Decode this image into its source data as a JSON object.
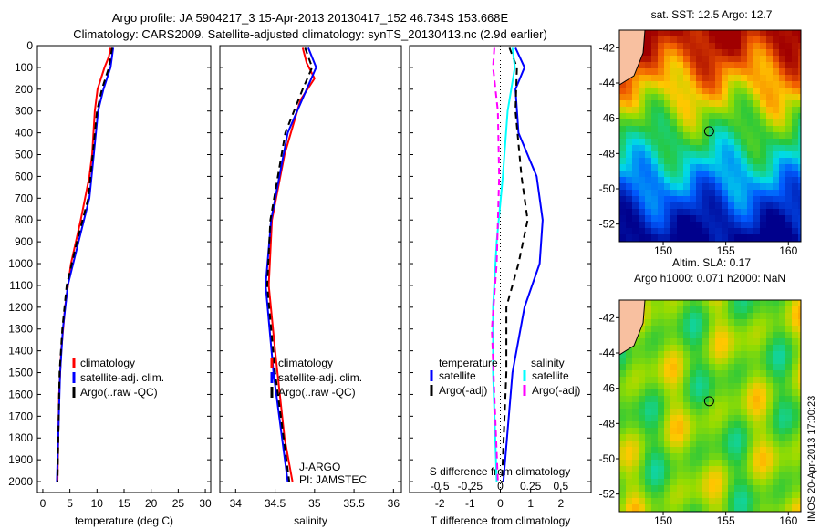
{
  "title_line1": "Argo profile: JA 5904217_3 15-Apr-2013 20130417_152 46.734S 153.668E",
  "title_line2": "Climatology: CARS2009. Satellite-adjusted climatology: synTS_20130413.nc (2.9d earlier)",
  "side_label": "IMOS 20-Apr-2013 17:00:23",
  "colors": {
    "climatology": "#ff0000",
    "satellite": "#0000ff",
    "argo": "#000000",
    "sal_sat": "#00ffff",
    "sal_argo": "#ff00ff"
  },
  "chart_data": [
    {
      "type": "line",
      "name": "temperature",
      "xlabel": "temperature (deg C)",
      "xlim": [
        -1,
        31
      ],
      "ylim": [
        2050,
        0
      ],
      "xticks": [
        "0",
        "5",
        "10",
        "15",
        "20",
        "25",
        "30"
      ],
      "xtick_values": [
        0,
        5,
        10,
        15,
        20,
        25,
        30
      ],
      "yticks": [
        "0",
        "100",
        "200",
        "300",
        "400",
        "500",
        "600",
        "700",
        "800",
        "900",
        "1000",
        "1100",
        "1200",
        "1300",
        "1400",
        "1500",
        "1600",
        "1700",
        "1800",
        "1900",
        "2000"
      ],
      "legend": [
        "climatology",
        "satellite-adj. clim.",
        "Argo(..raw -QC)"
      ],
      "series": [
        {
          "name": "climatology",
          "style": "solid",
          "color": "#ff0000",
          "points": [
            [
              10,
              12.5
            ],
            [
              50,
              12.2
            ],
            [
              100,
              11.4
            ],
            [
              200,
              10.1
            ],
            [
              300,
              9.6
            ],
            [
              500,
              9.1
            ],
            [
              600,
              8.6
            ],
            [
              800,
              7.0
            ],
            [
              1000,
              5.2
            ],
            [
              1200,
              4.1
            ],
            [
              1400,
              3.4
            ],
            [
              1600,
              3.0
            ],
            [
              2000,
              2.7
            ]
          ]
        },
        {
          "name": "satellite-adj. clim.",
          "style": "solid",
          "color": "#0000ff",
          "points": [
            [
              10,
              13.0
            ],
            [
              100,
              12.5
            ],
            [
              200,
              11.2
            ],
            [
              300,
              10.2
            ],
            [
              500,
              9.4
            ],
            [
              700,
              8.6
            ],
            [
              900,
              6.6
            ],
            [
              1100,
              4.6
            ],
            [
              1300,
              3.7
            ],
            [
              1500,
              3.2
            ],
            [
              2000,
              2.6
            ]
          ]
        },
        {
          "name": "Argo(..raw -QC)",
          "style": "dash",
          "color": "#000000",
          "points": [
            [
              10,
              12.8
            ],
            [
              100,
              12.2
            ],
            [
              200,
              10.9
            ],
            [
              300,
              10.0
            ],
            [
              500,
              9.2
            ],
            [
              700,
              8.4
            ],
            [
              900,
              6.3
            ],
            [
              1100,
              4.4
            ],
            [
              1300,
              3.6
            ],
            [
              1500,
              3.1
            ],
            [
              2000,
              2.7
            ]
          ]
        }
      ]
    },
    {
      "type": "line",
      "name": "salinity",
      "xlabel": "salinity",
      "xlim": [
        33.8,
        36.1
      ],
      "ylim": [
        2050,
        0
      ],
      "xticks": [
        "34",
        "34.5",
        "35",
        "35.5",
        "36"
      ],
      "xtick_values": [
        34,
        34.5,
        35,
        35.5,
        36
      ],
      "legend": [
        "climatology",
        "satellite-adj. clim.",
        "Argo(..raw -QC)"
      ],
      "annotation": [
        "J-ARGO",
        "PI: JAMSTEC"
      ],
      "series": [
        {
          "name": "climatology",
          "style": "solid",
          "color": "#ff0000",
          "points": [
            [
              10,
              34.85
            ],
            [
              80,
              34.9
            ],
            [
              150,
              35.0
            ],
            [
              250,
              34.82
            ],
            [
              500,
              34.62
            ],
            [
              800,
              34.46
            ],
            [
              1100,
              34.42
            ],
            [
              1400,
              34.5
            ],
            [
              1800,
              34.62
            ],
            [
              2000,
              34.72
            ]
          ]
        },
        {
          "name": "satellite-adj. clim.",
          "style": "solid",
          "color": "#0000ff",
          "points": [
            [
              10,
              34.92
            ],
            [
              100,
              35.02
            ],
            [
              200,
              34.9
            ],
            [
              400,
              34.66
            ],
            [
              800,
              34.45
            ],
            [
              1100,
              34.38
            ],
            [
              1500,
              34.48
            ],
            [
              2000,
              34.66
            ]
          ]
        },
        {
          "name": "Argo(..raw -QC)",
          "style": "dash",
          "color": "#000000",
          "points": [
            [
              10,
              34.88
            ],
            [
              100,
              34.97
            ],
            [
              200,
              34.85
            ],
            [
              400,
              34.63
            ],
            [
              800,
              34.44
            ],
            [
              1100,
              34.4
            ],
            [
              1500,
              34.5
            ],
            [
              2000,
              34.68
            ]
          ]
        }
      ]
    },
    {
      "type": "line",
      "name": "difference",
      "xlabel": "T difference from climatology",
      "x2label": "S difference from climatology",
      "xlim": [
        -3,
        3
      ],
      "ylim": [
        2050,
        0
      ],
      "xticks": [
        "-2",
        "-1",
        "0",
        "1",
        "2"
      ],
      "xtick_values": [
        -2,
        -1,
        0,
        1,
        2
      ],
      "x2ticks": [
        "-0.5",
        "-0.25",
        "0",
        "0.25",
        "0.5"
      ],
      "x2tick_values": [
        -0.5,
        -0.25,
        0,
        0.25,
        0.5
      ],
      "legend_titles": [
        "temperature",
        "salinity"
      ],
      "legend": [
        "satellite",
        "Argo(-adj)",
        "satellite",
        "Argo(-adj)"
      ],
      "series": [
        {
          "name": "T satellite",
          "style": "solid",
          "color": "#0000ff",
          "points": [
            [
              10,
              0.5
            ],
            [
              100,
              0.8
            ],
            [
              200,
              0.5
            ],
            [
              400,
              0.6
            ],
            [
              600,
              1.2
            ],
            [
              800,
              1.4
            ],
            [
              1000,
              1.3
            ],
            [
              1200,
              0.8
            ],
            [
              1500,
              0.4
            ],
            [
              2000,
              0.1
            ]
          ]
        },
        {
          "name": "T Argo(-adj)",
          "style": "dash",
          "color": "#000000",
          "points": [
            [
              10,
              0.3
            ],
            [
              100,
              0.55
            ],
            [
              300,
              0.5
            ],
            [
              600,
              0.7
            ],
            [
              800,
              0.9
            ],
            [
              1000,
              0.6
            ],
            [
              1200,
              0.2
            ],
            [
              1500,
              0.2
            ],
            [
              2000,
              0.05
            ]
          ]
        },
        {
          "name": "S satellite",
          "style": "solid",
          "color": "#00ffff",
          "scale": 4,
          "points": [
            [
              10,
              0.1
            ],
            [
              100,
              0.12
            ],
            [
              300,
              0.06
            ],
            [
              600,
              0.02
            ],
            [
              900,
              -0.03
            ],
            [
              1200,
              -0.06
            ],
            [
              1500,
              -0.06
            ],
            [
              2000,
              -0.03
            ]
          ]
        },
        {
          "name": "S Argo(-adj)",
          "style": "dash",
          "color": "#ff00ff",
          "scale": 4,
          "points": [
            [
              10,
              -0.05
            ],
            [
              100,
              -0.06
            ],
            [
              300,
              -0.02
            ],
            [
              600,
              -0.01
            ],
            [
              1000,
              -0.03
            ],
            [
              1300,
              -0.07
            ],
            [
              1600,
              -0.05
            ],
            [
              2000,
              -0.02
            ]
          ]
        }
      ]
    },
    {
      "type": "heatmap",
      "name": "sst-map",
      "title": "sat. SST: 12.5 Argo: 12.7",
      "lon": [
        146.5,
        161
      ],
      "lat": [
        -53,
        -41
      ],
      "xticks": [
        "150",
        "155",
        "160"
      ],
      "xtick_values": [
        150,
        155,
        160
      ],
      "yticks": [
        "-42",
        "-44",
        "-46",
        "-48",
        "-50",
        "-52"
      ],
      "ytick_values": [
        -42,
        -44,
        -46,
        -48,
        -50,
        -52
      ],
      "argo_position": [
        153.668,
        -46.734
      ]
    },
    {
      "type": "heatmap",
      "name": "sla-map",
      "title": "Altim. SLA: 0.17",
      "subtitle": "Argo h1000: 0.071 h2000: NaN",
      "lon": [
        146.5,
        161
      ],
      "lat": [
        -53,
        -41
      ],
      "xticks": [
        "150",
        "155",
        "160"
      ],
      "xtick_values": [
        150,
        155,
        160
      ],
      "yticks": [
        "-42",
        "-44",
        "-46",
        "-48",
        "-50",
        "-52"
      ],
      "ytick_values": [
        -42,
        -44,
        -46,
        -48,
        -50,
        -52
      ],
      "argo_position": [
        153.668,
        -46.734
      ]
    }
  ]
}
